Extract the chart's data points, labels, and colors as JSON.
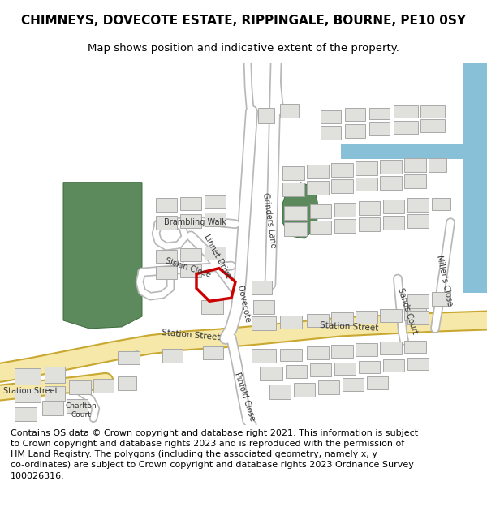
{
  "title": "CHIMNEYS, DOVECOTE ESTATE, RIPPINGALE, BOURNE, PE10 0SY",
  "subtitle": "Map shows position and indicative extent of the property.",
  "footer": "Contains OS data © Crown copyright and database right 2021. This information is subject to Crown copyright and database rights 2023 and is reproduced with the permission of HM Land Registry. The polygons (including the associated geometry, namely x, y co-ordinates) are subject to Crown copyright and database rights 2023 Ordnance Survey 100026316.",
  "bg_color": "#ffffff",
  "map_bg": "#f5f5f0",
  "road_yellow_fill": "#f5e8a8",
  "road_yellow_edge": "#c8a830",
  "road_white_fill": "#ffffff",
  "road_gray_edge": "#b8b8b8",
  "building_fill": "#e0e0dc",
  "building_outline": "#a8a8a8",
  "green_fill": "#5c8a5c",
  "green_outline": "#3a6a3a",
  "blue_fill": "#88c0d8",
  "red_plot": "#cc0000",
  "title_fontsize": 11,
  "subtitle_fontsize": 9.5,
  "footer_fontsize": 8.0,
  "label_fontsize": 7.0,
  "label_color": "#333333"
}
